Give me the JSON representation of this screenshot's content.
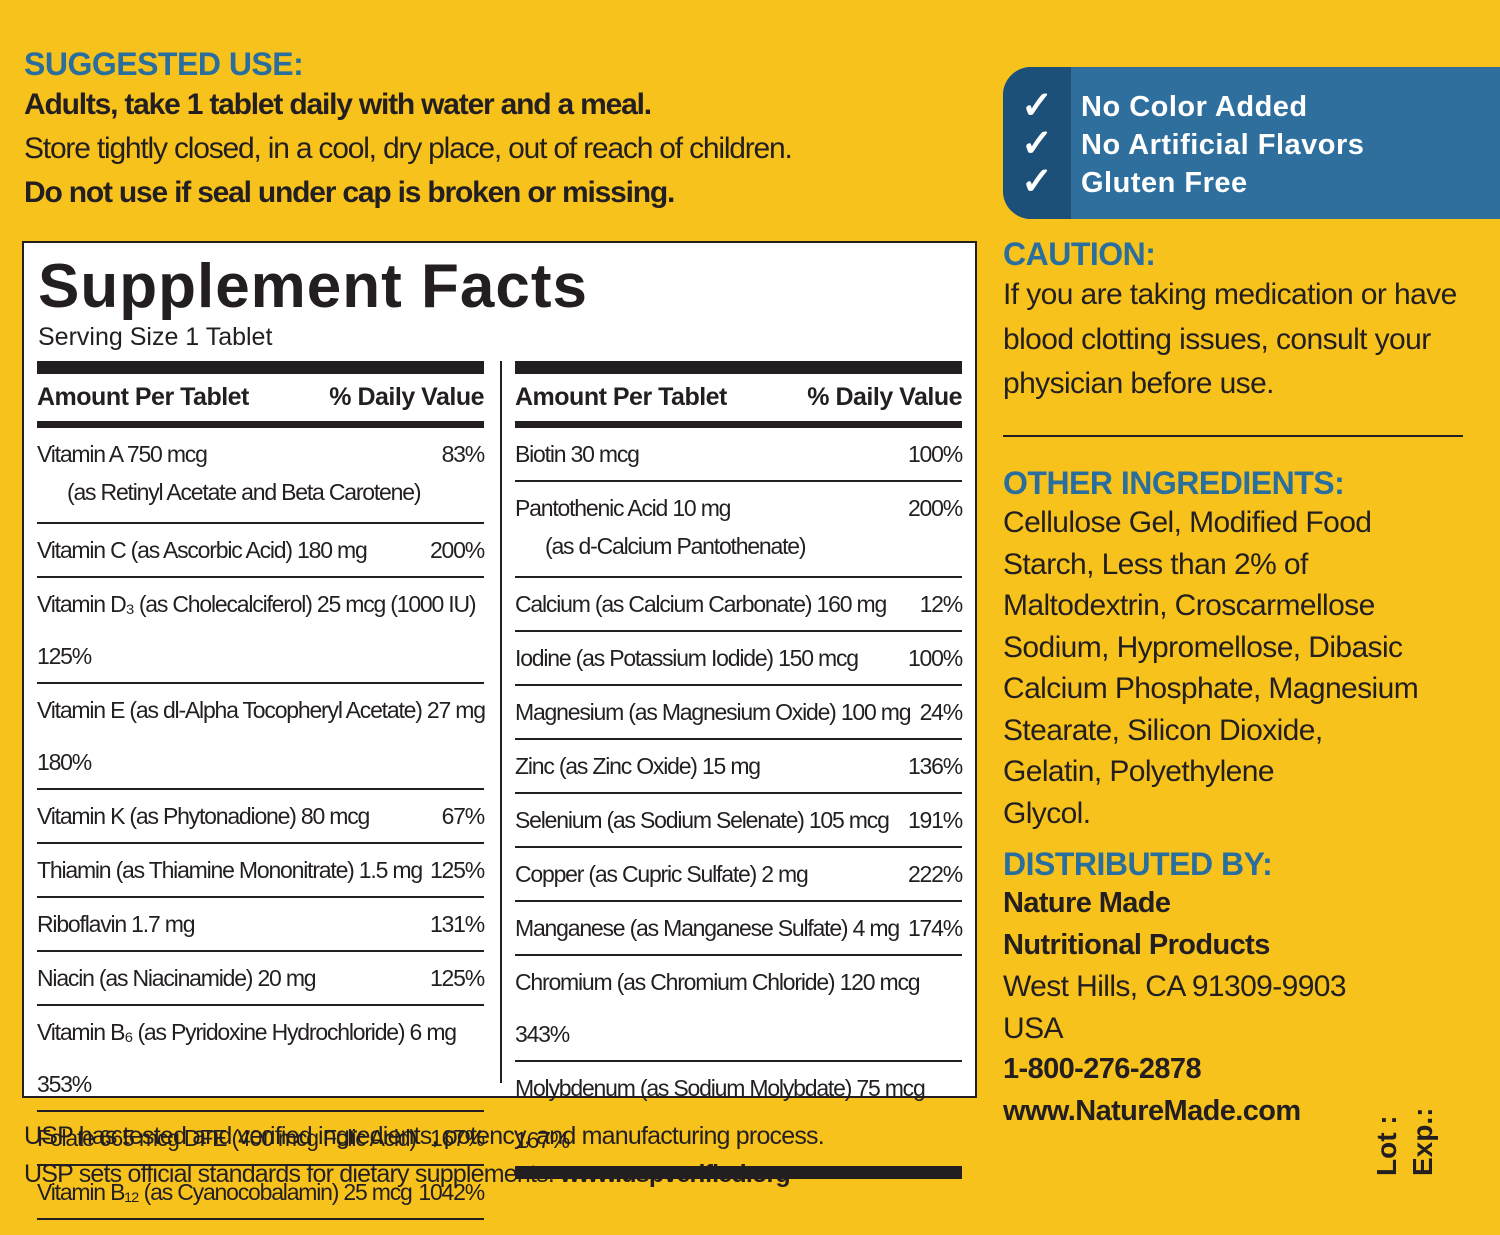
{
  "suggested_use": {
    "heading": "SUGGESTED USE:",
    "lines": [
      "Adults, take 1 tablet daily with water and a meal.",
      "Store tightly closed, in a cool, dry place, out of reach of children.",
      "Do not use if seal under cap is broken or missing."
    ]
  },
  "badges": [
    "No Color Added",
    "No Artificial Flavors",
    "Gluten Free"
  ],
  "supplement_facts": {
    "title": "Supplement Facts",
    "serving_size": "Serving Size 1 Tablet",
    "columns": [
      {
        "header": [
          "Amount Per Tablet",
          "% Daily Value"
        ],
        "rows": [
          [
            "Vitamin A 750 mcg",
            "83%",
            "(as Retinyl Acetate and Beta Carotene)"
          ],
          [
            "Vitamin C (as Ascorbic Acid) 180 mg",
            "200%"
          ],
          [
            "Vitamin D₃ (as Cholecalciferol) 25 mcg (1000 IU)",
            "125%"
          ],
          [
            "Vitamin E (as dl-Alpha Tocopheryl Acetate) 27 mg",
            "180%"
          ],
          [
            "Vitamin K (as Phytonadione) 80 mcg",
            "67%"
          ],
          [
            "Thiamin (as Thiamine Mononitrate) 1.5 mg",
            "125%"
          ],
          [
            "Riboflavin 1.7 mg",
            "131%"
          ],
          [
            "Niacin (as Niacinamide) 20 mg",
            "125%"
          ],
          [
            "Vitamin B₆ (as Pyridoxine Hydrochloride) 6 mg",
            "353%"
          ],
          [
            "Folate 665 mcg DFE (400 mcg Folic Acid)",
            "167%"
          ],
          [
            "Vitamin B₁₂ (as Cyanocobalamin) 25 mcg",
            "1042%"
          ]
        ]
      },
      {
        "header": [
          "Amount Per Tablet",
          "% Daily Value"
        ],
        "rows": [
          [
            "Biotin 30 mcg",
            "100%"
          ],
          [
            "Pantothenic Acid 10 mg",
            "200%",
            "(as d-Calcium Pantothenate)"
          ],
          [
            "Calcium (as Calcium Carbonate) 160 mg",
            "12%"
          ],
          [
            "Iodine (as Potassium Iodide) 150 mcg",
            "100%"
          ],
          [
            "Magnesium (as Magnesium Oxide) 100 mg",
            "24%"
          ],
          [
            "Zinc (as Zinc Oxide) 15 mg",
            "136%"
          ],
          [
            "Selenium (as Sodium Selenate) 105 mcg",
            "191%"
          ],
          [
            "Copper (as Cupric Sulfate) 2 mg",
            "222%"
          ],
          [
            "Manganese (as Manganese Sulfate) 4 mg",
            "174%"
          ],
          [
            "Chromium (as Chromium Chloride) 120 mcg",
            "343%"
          ],
          [
            "Molybdenum (as Sodium Molybdate) 75 mcg",
            "167%"
          ]
        ]
      }
    ]
  },
  "usp": [
    "USP has tested and verified ingredients, potency, and manufacturing process.",
    "USP sets official standards for dietary supplements.",
    "www.uspverified.org"
  ],
  "caution": {
    "heading": "CAUTION:",
    "lines": [
      "If you are taking medication or have",
      "blood clotting issues, consult your",
      "physician before use."
    ]
  },
  "other_ingredients": {
    "heading": "OTHER INGREDIENTS:",
    "lines": [
      "Cellulose Gel, Modified Food",
      "Starch, Less than 2% of",
      "Maltodextrin, Croscarmellose",
      "Sodium, Hypromellose, Dibasic",
      "Calcium Phosphate, Magnesium",
      "Stearate, Silicon Dioxide,",
      "Gelatin, Polyethylene",
      "Glycol."
    ]
  },
  "distributed_by": {
    "heading": "DISTRIBUTED BY:",
    "lines": [
      "Nature Made",
      "Nutritional Products",
      "West Hills, CA 91309-9903",
      "USA",
      "1-800-276-2878",
      "www.NatureMade.com"
    ]
  },
  "lot_exp": [
    "Lot :",
    "Exp.:"
  ]
}
